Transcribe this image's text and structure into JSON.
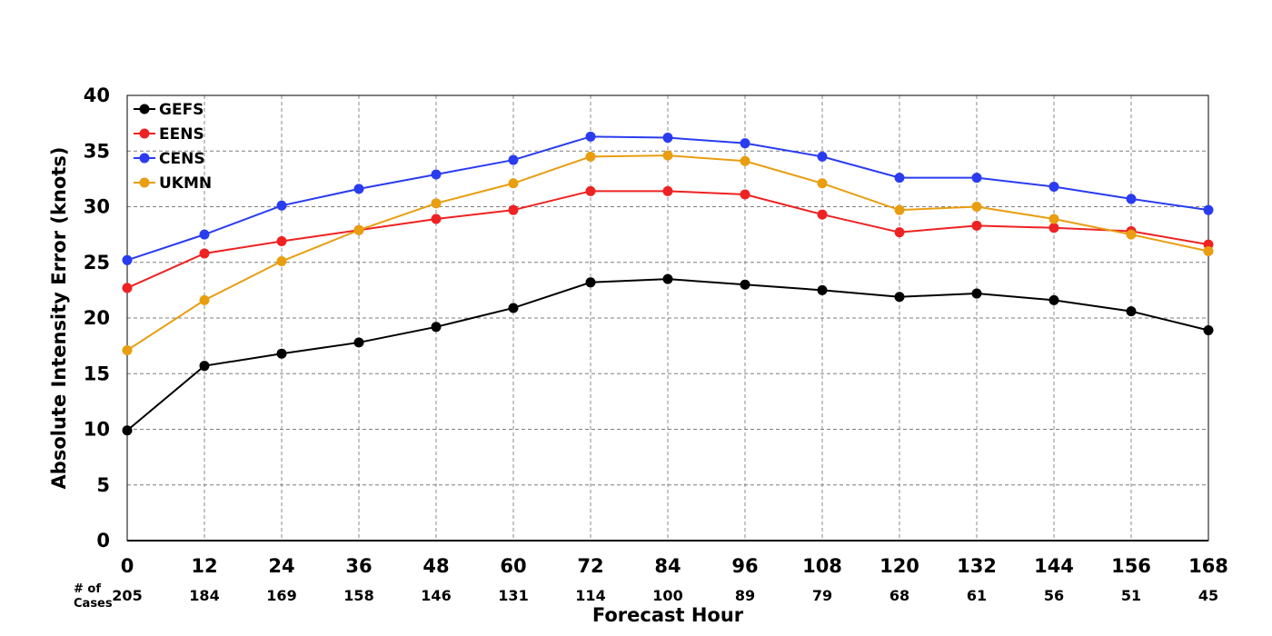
{
  "chart_data": {
    "type": "line",
    "xlabel": "Forecast Hour",
    "ylabel": "Absolute Intensity Error (knots)",
    "x": [
      0,
      12,
      24,
      36,
      48,
      60,
      72,
      84,
      96,
      108,
      120,
      132,
      144,
      156,
      168
    ],
    "xlim": [
      0,
      168
    ],
    "ylim": [
      0,
      40
    ],
    "yticks": [
      0,
      5,
      10,
      15,
      20,
      25,
      30,
      35,
      40
    ],
    "grid": true,
    "legend_position": "top-left",
    "cases_label": [
      "# of",
      "Cases"
    ],
    "cases": [
      "205",
      "184",
      "169",
      "158",
      "146",
      "131",
      "114",
      "100",
      "89",
      "79",
      "68",
      "61",
      "56",
      "51",
      "45"
    ],
    "series": [
      {
        "name": "GEFS",
        "color": "#000000",
        "values": [
          9.9,
          15.7,
          16.8,
          17.8,
          19.2,
          20.9,
          23.2,
          23.5,
          23.0,
          22.5,
          21.9,
          22.2,
          21.6,
          20.6,
          18.9
        ]
      },
      {
        "name": "EENS",
        "color": "#ee2222",
        "values": [
          22.7,
          25.8,
          26.9,
          27.9,
          28.9,
          29.7,
          31.4,
          31.4,
          31.1,
          29.3,
          27.7,
          28.3,
          28.1,
          27.8,
          26.6
        ]
      },
      {
        "name": "CENS",
        "color": "#2a3cf0",
        "values": [
          25.2,
          27.5,
          30.1,
          31.6,
          32.9,
          34.2,
          36.3,
          36.2,
          35.7,
          34.5,
          32.6,
          32.6,
          31.8,
          30.7,
          29.7
        ]
      },
      {
        "name": "UKMN",
        "color": "#e89e10",
        "values": [
          17.1,
          21.6,
          25.1,
          27.9,
          30.3,
          32.1,
          34.5,
          34.6,
          34.1,
          32.1,
          29.7,
          30.0,
          28.9,
          27.5,
          26.0
        ]
      }
    ]
  }
}
